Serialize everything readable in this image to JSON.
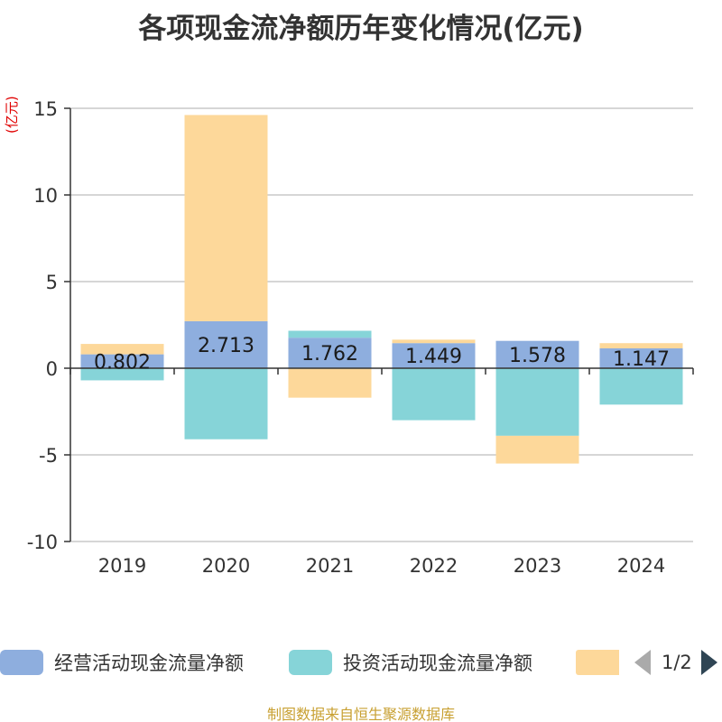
{
  "title": "各项现金流净额历年变化情况(亿元)",
  "source": "制图数据来自恒生聚源数据库",
  "chart_data": {
    "type": "bar",
    "stacked": true,
    "title": "各项现金流净额历年变化情况(亿元)",
    "ylabel": "(亿元)",
    "xlabel": "",
    "ylim": [
      -10,
      15
    ],
    "yticks": [
      15,
      10,
      5,
      0,
      -5,
      -10
    ],
    "grid": true,
    "categories": [
      "2019",
      "2020",
      "2021",
      "2022",
      "2023",
      "2024"
    ],
    "series": [
      {
        "name": "经营活动现金流量净额",
        "color": "#8eaede",
        "values": [
          0.802,
          2.713,
          1.762,
          1.449,
          1.578,
          1.147
        ],
        "labels": [
          "0.802",
          "2.713",
          "1.762",
          "1.449",
          "1.578",
          "1.147"
        ]
      },
      {
        "name": "投资活动现金流量净额",
        "color": "#86d4d8",
        "values": [
          -0.7,
          -4.1,
          0.4,
          -3.0,
          -3.9,
          -2.1
        ]
      },
      {
        "name": "",
        "color": "#fdd89a",
        "values": [
          0.6,
          11.9,
          -1.7,
          0.2,
          -1.6,
          0.3
        ]
      }
    ]
  },
  "legend": {
    "items": [
      {
        "label": "经营活动现金流量净额",
        "color": "#8eaede"
      },
      {
        "label": "投资活动现金流量净额",
        "color": "#86d4d8"
      },
      {
        "label": "",
        "color": "#fdd89a"
      }
    ],
    "page_text": "1/2",
    "prev_color": "#aaaaaa",
    "next_color": "#2f4554"
  }
}
